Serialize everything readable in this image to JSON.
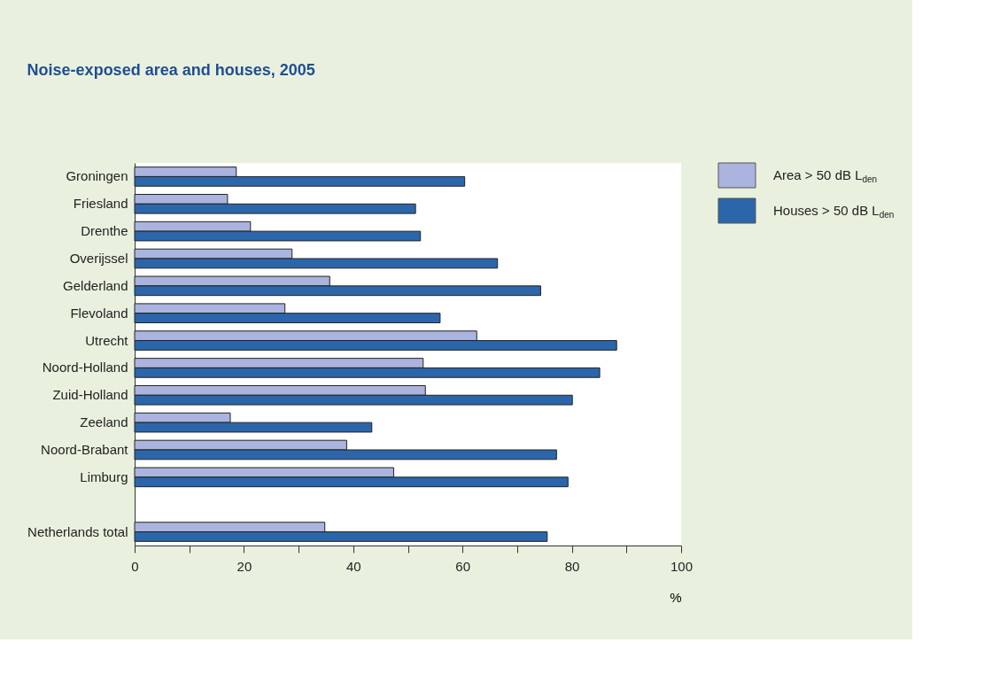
{
  "chart_data": {
    "type": "bar",
    "orientation": "horizontal",
    "title": "Noise-exposed area and houses, 2005",
    "xlabel": "%",
    "categories": [
      "Groningen",
      "Friesland",
      "Drenthe",
      "Overijssel",
      "Gelderland",
      "Flevoland",
      "Utrecht",
      "Noord-Holland",
      "Zuid-Holland",
      "Zeeland",
      "Noord-Brabant",
      "Limburg",
      null,
      "Netherlands total"
    ],
    "series": [
      {
        "name": "Area > 50 dB L$_{den}$",
        "color": "#aab4de",
        "values": [
          18.6,
          17.0,
          21.2,
          28.8,
          35.7,
          27.5,
          62.6,
          52.8,
          53.2,
          17.5,
          38.8,
          47.4,
          null,
          34.8
        ]
      },
      {
        "name": "Houses > 50 dB L$_{den}$",
        "color": "#2b66aa",
        "values": [
          60.4,
          51.4,
          52.3,
          66.4,
          74.3,
          55.9,
          88.2,
          85.1,
          80.1,
          43.4,
          77.2,
          79.3,
          null,
          75.5
        ]
      }
    ],
    "xlim": [
      0,
      100
    ],
    "xticks": [
      0,
      {
        "value": 10,
        "label": null
      },
      20,
      {
        "value": 30,
        "label": null
      },
      40,
      {
        "value": 50,
        "label": null
      },
      60,
      {
        "value": 70,
        "label": null
      },
      80,
      {
        "value": 90,
        "label": null
      },
      100
    ],
    "grid": false,
    "legend": "top right"
  }
}
